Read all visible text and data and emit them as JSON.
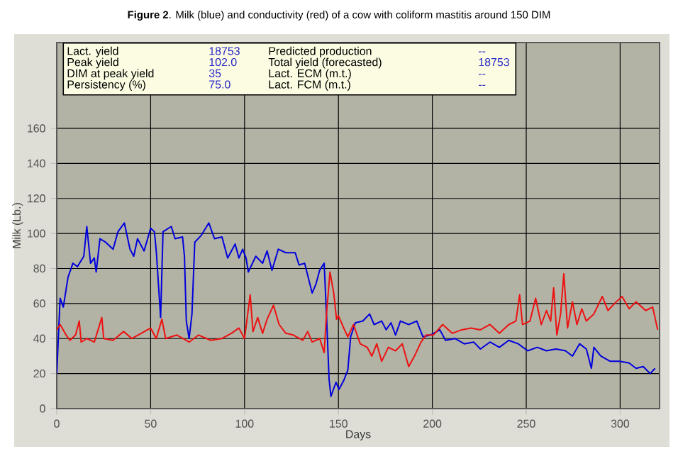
{
  "chart_data": {
    "type": "line",
    "title": "**Figure 2**. Milk (blue) and conductivity (red) of a cow with coliform mastitis around 150 DIM",
    "xlabel": "Days",
    "ylabel": "Milk (Lb.)",
    "annotations": [
      "Lact. yield",
      "18753",
      "Predicted production",
      "--",
      "Peak yield",
      "102.0",
      "Total yield (forecasted)",
      "18753",
      "DIM at peak yield",
      "35",
      "Lact. ECM (m.t.)",
      "--",
      "Persistency (%)",
      "75.0",
      "Lact. FCM (m.t.)",
      "--"
    ],
    "xlim": [
      0,
      321
    ],
    "ylim": [
      0,
      209
    ],
    "xticks": [
      0,
      50,
      100,
      150,
      200,
      250,
      300
    ],
    "yticks": [
      0,
      20,
      40,
      60,
      80,
      100,
      120,
      140,
      160
    ],
    "grid": true,
    "marker": "none",
    "line_style": "solid",
    "series": [
      {
        "color": "#0000dd",
        "x": [
          0,
          1.8,
          3.5,
          6,
          8.6,
          11,
          14.4,
          16,
          18,
          20,
          21,
          23,
          26,
          30,
          32.6,
          36,
          39,
          41,
          43,
          46.5,
          50,
          52,
          53,
          55.3,
          56.6,
          61,
          63,
          67,
          68,
          69,
          70.5,
          72,
          73.5,
          77,
          81,
          84,
          88,
          91,
          95,
          97,
          99,
          100.8,
          102,
          106,
          109.6,
          112,
          114.6,
          118,
          122,
          127,
          129,
          132,
          136,
          138,
          140,
          142.4,
          143.7,
          145,
          146,
          148.7,
          150.3,
          152.8,
          155,
          156.5,
          159,
          163,
          166.6,
          169,
          173,
          175.4,
          178,
          180.4,
          183,
          187.4,
          191.7,
          195,
          199,
          204,
          207,
          212,
          217,
          222,
          225.6,
          230.7,
          235.7,
          240.7,
          245.7,
          250.8,
          255.8,
          260.8,
          265.8,
          270.9,
          274.6,
          278.4,
          282,
          284.7,
          286,
          289.7,
          294.7,
          299.7,
          304.8,
          308.5,
          312.3,
          316,
          318.6
        ],
        "values": [
          20,
          63,
          58,
          75,
          83,
          81,
          87,
          104,
          83,
          86,
          78,
          97,
          95,
          91,
          101,
          106,
          91,
          87,
          97,
          90,
          103,
          101,
          90,
          52,
          101,
          104,
          97,
          98,
          87,
          50,
          40,
          54,
          95,
          99,
          106,
          97,
          98,
          86,
          94,
          86,
          91,
          86,
          78,
          87,
          83,
          90,
          79,
          91,
          89,
          89,
          82,
          83,
          66,
          71,
          79,
          83,
          52,
          17,
          7,
          15,
          11,
          16,
          22,
          41,
          49,
          50,
          54,
          48,
          50,
          45,
          49,
          42,
          50,
          48,
          50,
          41,
          42,
          45,
          39,
          40,
          37,
          38,
          34,
          38,
          35,
          39,
          37,
          33,
          35,
          33,
          34,
          33,
          30,
          37,
          34,
          23,
          35,
          30,
          27,
          27,
          26,
          23,
          24,
          20,
          23
        ]
      },
      {
        "color": "#ee1111",
        "x": [
          0,
          1.8,
          5,
          7,
          10,
          12,
          13,
          16,
          20,
          24,
          25,
          30,
          35.6,
          40,
          45,
          50,
          53,
          56,
          58,
          64,
          70.5,
          75.5,
          82,
          88,
          93,
          97,
          100,
          103,
          104.5,
          107,
          109.6,
          112,
          115.4,
          118.4,
          122,
          126,
          131,
          133.6,
          136,
          140,
          142.4,
          143.7,
          145.5,
          147.5,
          149,
          150,
          152.8,
          155,
          158,
          161.6,
          165.3,
          167.8,
          170.4,
          173,
          176.6,
          180.4,
          184,
          187.4,
          190.5,
          194,
          196.7,
          200.5,
          205.5,
          210.6,
          215.6,
          220.6,
          225.6,
          230.7,
          235.7,
          240.7,
          244.5,
          246.5,
          248,
          252,
          255,
          258,
          260.8,
          263,
          264.6,
          266.3,
          268.3,
          270,
          272,
          274.6,
          277,
          279.6,
          282,
          286,
          290.5,
          293.5,
          297,
          301,
          304.8,
          308.5,
          313.6,
          317.3,
          320
        ],
        "values": [
          45,
          48,
          42,
          39,
          42,
          50,
          38,
          40,
          38,
          52,
          40,
          39,
          44,
          40,
          43,
          46,
          40,
          51,
          40,
          42,
          38,
          42,
          39,
          40,
          43,
          46,
          40,
          65,
          44,
          52,
          43,
          51,
          59,
          48,
          43,
          42,
          39,
          44,
          38,
          40,
          32,
          55,
          78,
          66,
          51,
          53,
          46,
          41,
          48,
          37,
          35,
          30,
          37,
          27,
          35,
          33,
          37,
          24,
          30,
          38,
          42,
          42,
          48,
          43,
          45,
          46,
          45,
          48,
          43,
          48,
          50,
          65,
          48,
          50,
          63,
          48,
          56,
          50,
          69,
          42,
          54,
          77,
          46,
          61,
          48,
          57,
          50,
          54,
          64,
          56,
          60,
          64,
          57,
          61,
          56,
          58,
          45
        ]
      }
    ]
  }
}
